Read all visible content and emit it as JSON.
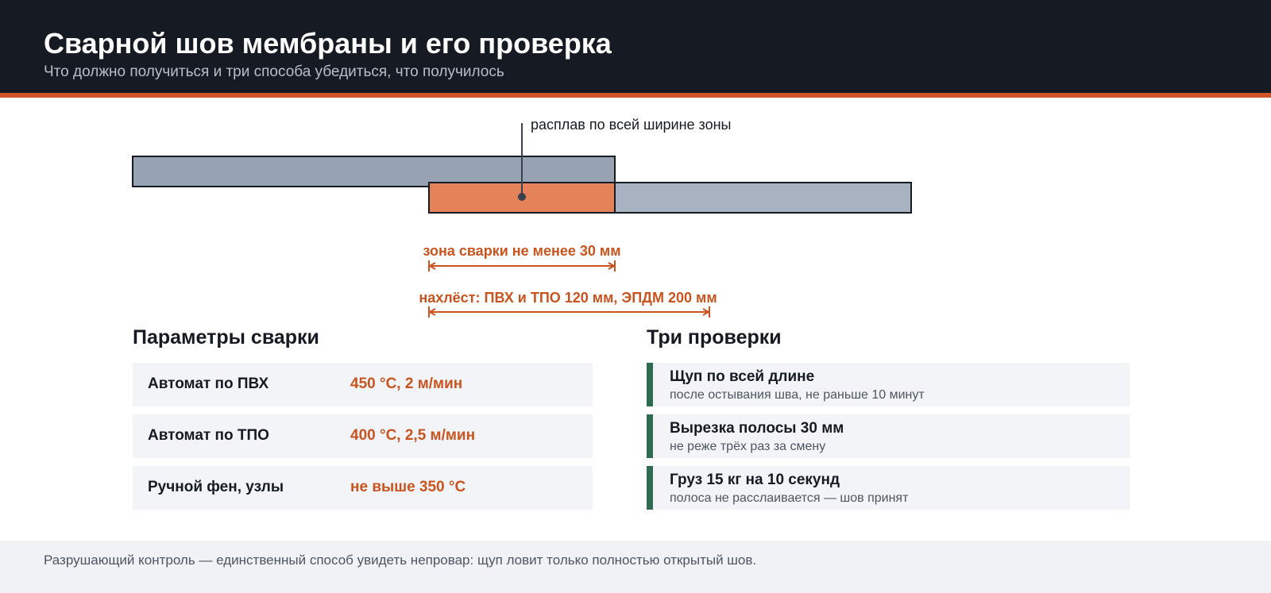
{
  "header": {
    "title": "Сварной шов мембраны и его проверка",
    "subtitle": "Что должно получиться и три способа убедиться, что получилось"
  },
  "diagram": {
    "callout": "расплав по всей ширине зоны",
    "weld_zone": "зона сварки не менее 30 мм",
    "overlap": "нахлёст: ПВХ и ТПО 120 мм, ЭПДМ 200 мм"
  },
  "params": {
    "title": "Параметры сварки",
    "rows": [
      {
        "label": "Автомат по ПВХ",
        "value": "450 °C, 2 м/мин"
      },
      {
        "label": "Автомат по ТПО",
        "value": "400 °C, 2,5 м/мин"
      },
      {
        "label": "Ручной фен, узлы",
        "value": "не выше 350 °C"
      }
    ]
  },
  "checks": {
    "title": "Три проверки",
    "items": [
      {
        "title": "Щуп по всей длине",
        "note": "после остывания шва, не раньше 10 минут"
      },
      {
        "title": "Вырезка полосы 30 мм",
        "note": "не реже трёх раз за смену"
      },
      {
        "title": "Груз 15 кг на 10 секунд",
        "note": "полоса не расслаивается — шов принят"
      }
    ]
  },
  "footer": "Разрушающий контроль — единственный способ увидеть непровар: щуп ловит только полностью открытый шов."
}
